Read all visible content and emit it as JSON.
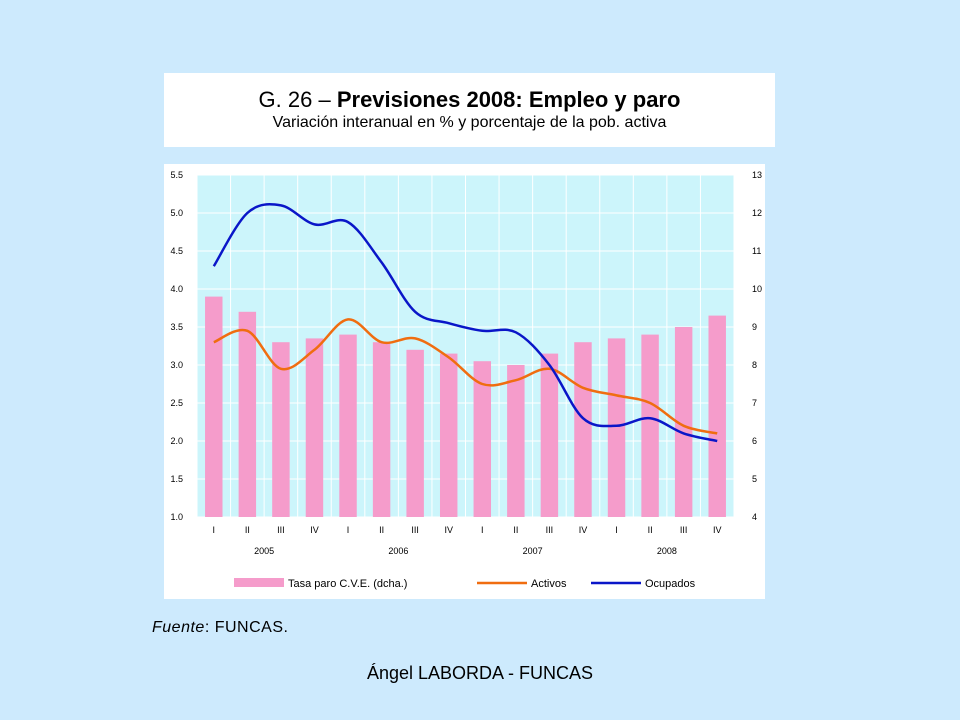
{
  "slide": {
    "title_prefix": "G. 26 – ",
    "title_bold": "Previsiones 2008: Empleo y paro",
    "subtitle": "Variación interanual en % y porcentaje de la pob. activa",
    "source_label": "Fuente",
    "source_rest": ": FUNCAS.",
    "footer": "Ángel LABORDA - FUNCAS"
  },
  "colors": {
    "background": "#cdeafd",
    "plot_bg": "#ccf5fb",
    "bars": "#f59ccb",
    "activos": "#f06d10",
    "ocupados": "#0a16c8"
  },
  "chart_data": {
    "type": "bar+line",
    "categories": [
      "I",
      "II",
      "III",
      "IV",
      "I",
      "II",
      "III",
      "IV",
      "I",
      "II",
      "III",
      "IV",
      "I",
      "II",
      "III",
      "IV"
    ],
    "year_labels": [
      "2005",
      "2006",
      "2007",
      "2008"
    ],
    "yleft": {
      "min": 1.0,
      "max": 5.5,
      "ticks": [
        "1.0",
        "1.5",
        "2.0",
        "2.5",
        "3.0",
        "3.5",
        "4.0",
        "4.5",
        "5.0",
        "5.5"
      ]
    },
    "yright": {
      "min": 4,
      "max": 13,
      "ticks": [
        "4",
        "5",
        "6",
        "7",
        "8",
        "9",
        "10",
        "11",
        "12",
        "13"
      ]
    },
    "grid": true,
    "legend_position": "bottom",
    "series": [
      {
        "name": "Tasa paro C.V.E. (dcha.)",
        "type": "bar",
        "axis": "right",
        "values": [
          9.8,
          9.4,
          8.6,
          8.7,
          8.8,
          8.6,
          8.4,
          8.3,
          8.1,
          8.0,
          8.3,
          8.6,
          8.7,
          8.8,
          9.0,
          9.3
        ]
      },
      {
        "name": "Activos",
        "type": "line",
        "axis": "left",
        "values": [
          3.3,
          3.45,
          2.95,
          3.2,
          3.6,
          3.3,
          3.35,
          3.1,
          2.75,
          2.8,
          2.95,
          2.7,
          2.6,
          2.5,
          2.2,
          2.1
        ]
      },
      {
        "name": "Ocupados",
        "type": "line",
        "axis": "left",
        "values": [
          4.3,
          5.0,
          5.1,
          4.85,
          4.88,
          4.35,
          3.7,
          3.55,
          3.45,
          3.43,
          3.0,
          2.3,
          2.2,
          2.3,
          2.1,
          2.0
        ]
      }
    ]
  }
}
